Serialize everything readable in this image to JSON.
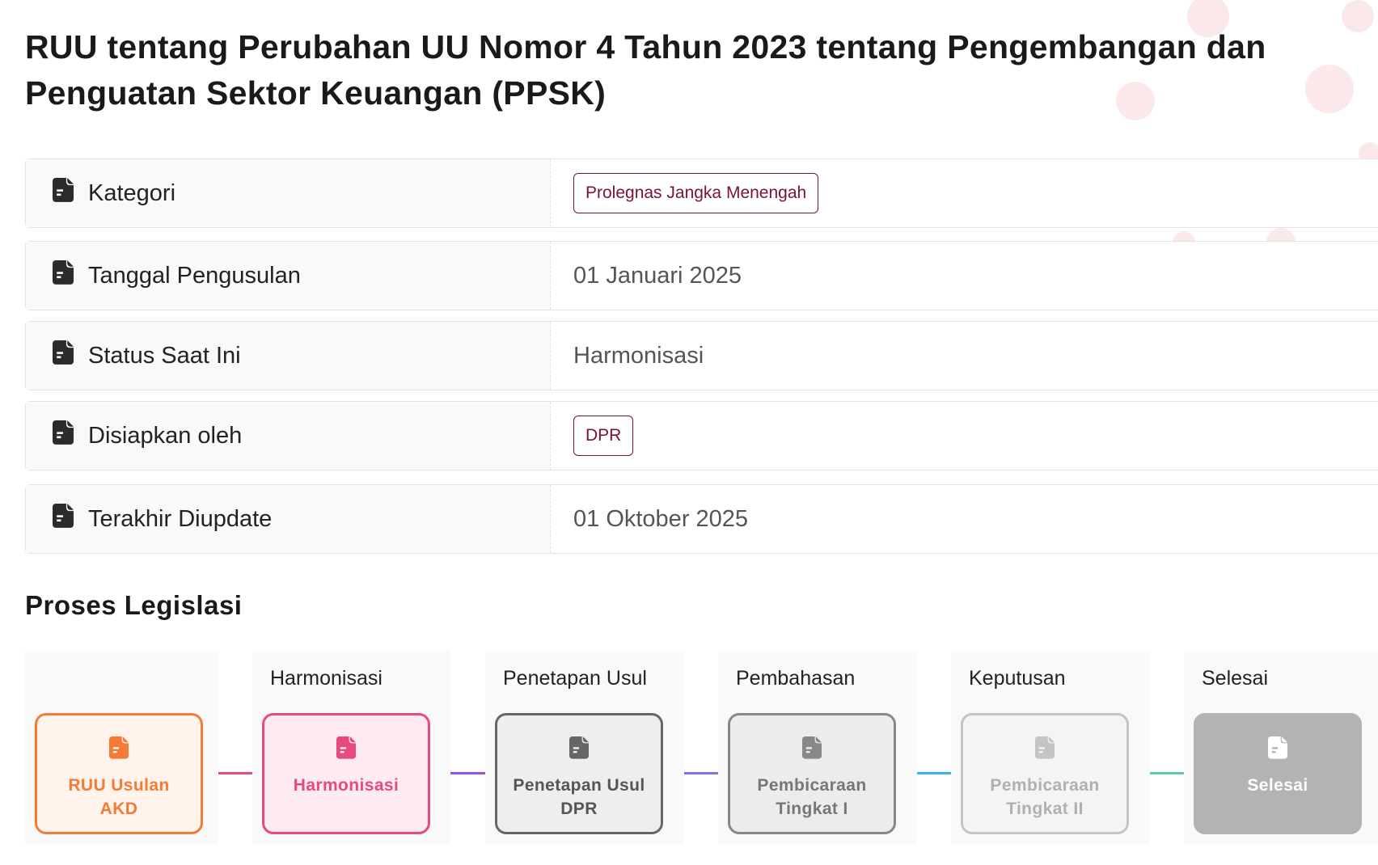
{
  "title": "RUU tentang Perubahan UU Nomor 4 Tahun 2023 tentang Pengembangan dan Penguatan Sektor Keuangan (PPSK)",
  "details": [
    {
      "label": "Kategori",
      "value": "Prolegnas Jangka Menengah",
      "badge": true
    },
    {
      "label": "Tanggal Pengusulan",
      "value": "01 Januari 2025",
      "badge": false
    },
    {
      "label": "Status Saat Ini",
      "value": "Harmonisasi",
      "badge": false
    },
    {
      "label": "Disiapkan oleh",
      "value": "DPR",
      "badge": true
    },
    {
      "label": "Terakhir Diupdate",
      "value": "01 Oktober 2025",
      "badge": false
    }
  ],
  "process": {
    "title": "Proses Legislasi",
    "steps": [
      {
        "header": "",
        "label": "RUU Usulan AKD",
        "color": "#f47b36",
        "bg": "#fff3ec",
        "text": "#f47b36"
      },
      {
        "header": "Harmonisasi",
        "label": "Harmonisasi",
        "color": "#e64a7f",
        "bg": "#fdebf1",
        "text": "#e64a7f"
      },
      {
        "header": "Penetapan Usul",
        "label": "Penetapan Usul DPR",
        "color": "#666666",
        "bg": "#eeeeee",
        "text": "#555555"
      },
      {
        "header": "Pembahasan",
        "label": "Pembicaraan Tingkat I",
        "color": "#888888",
        "bg": "#ececec",
        "text": "#777777"
      },
      {
        "header": "Keputusan",
        "label": "Pembicaraan Tingkat II",
        "color": "#c4c4c4",
        "bg": "#f4f4f4",
        "text": "#b0b0b0"
      },
      {
        "header": "Selesai",
        "label": "Selesai",
        "color": "#b3b3b3",
        "bg": "#b3b3b3",
        "text": "#ffffff"
      }
    ],
    "connector_colors": [
      "#f47b36",
      "#e64a7f",
      "#9b4ee0",
      "#7b74e8",
      "#3bb5e8",
      "#5bc8b0"
    ]
  }
}
